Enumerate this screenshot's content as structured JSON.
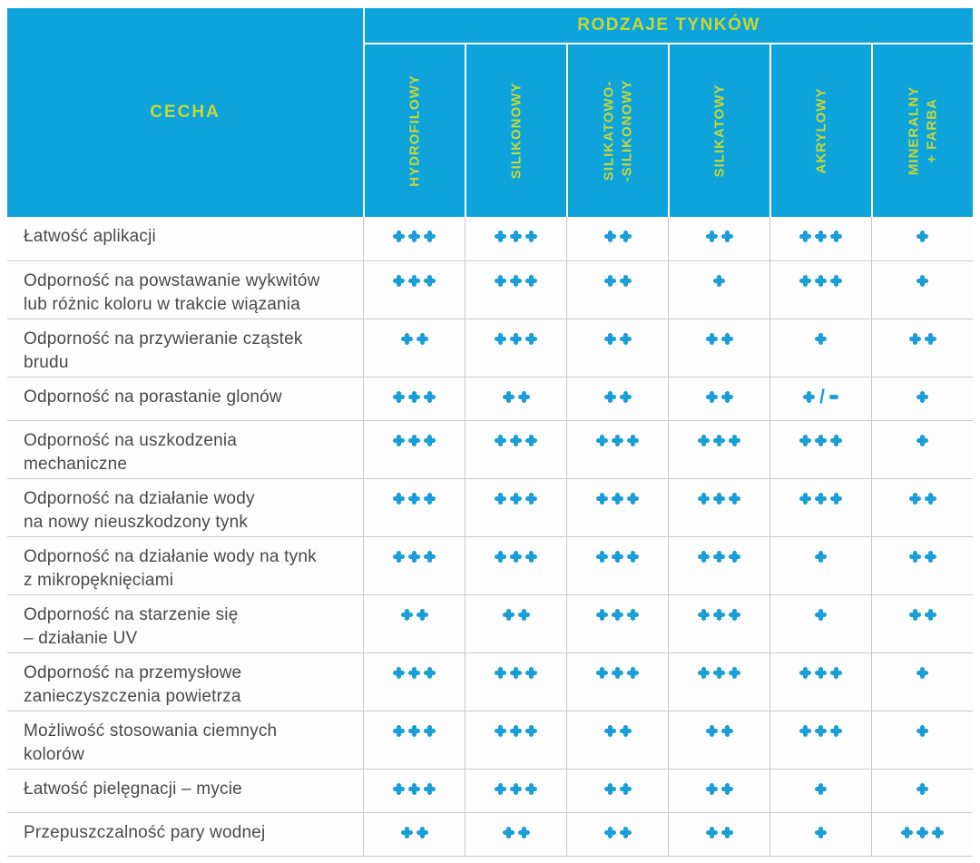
{
  "table": {
    "corner_header": "CECHA",
    "group_header": "RODZAJE TYNKÓW",
    "columns": [
      "HYDROFILOWY",
      "SILIKONOWY",
      "SILIKATOWO-\n-SILIKONOWY",
      "SILIKATOWY",
      "AKRYLOWY",
      "MINERALNY\n+ FARBA"
    ],
    "rows": [
      {
        "feature": "Łatwość aplikacji",
        "ratings": [
          "+++",
          "+++",
          "++",
          "++",
          "+++",
          "+"
        ]
      },
      {
        "feature": "Odporność na powstawanie wykwitów\nlub różnic koloru w trakcie wiązania",
        "ratings": [
          "+++",
          "+++",
          "++",
          "+",
          "+++",
          "+"
        ]
      },
      {
        "feature": "Odporność na przywieranie cząstek\nbrudu",
        "ratings": [
          "++",
          "+++",
          "++",
          "++",
          "+",
          "++"
        ]
      },
      {
        "feature": "Odporność na porastanie glonów",
        "ratings": [
          "+++",
          "++",
          "++",
          "++",
          "+/-",
          "+"
        ]
      },
      {
        "feature": "Odporność na uszkodzenia\nmechaniczne",
        "ratings": [
          "+++",
          "+++",
          "+++",
          "+++",
          "+++",
          "+"
        ]
      },
      {
        "feature": "Odporność na działanie wody\nna nowy nieuszkodzony tynk",
        "ratings": [
          "+++",
          "+++",
          "+++",
          "+++",
          "+++",
          "++"
        ]
      },
      {
        "feature": "Odporność na działanie wody na tynk\nz mikropęknięciami",
        "ratings": [
          "+++",
          "+++",
          "+++",
          "+++",
          "+",
          "++"
        ]
      },
      {
        "feature": "Odporność na starzenie się\n– działanie UV",
        "ratings": [
          "++",
          "++",
          "+++",
          "+++",
          "+",
          "++"
        ]
      },
      {
        "feature": "Odporność na przemysłowe\nzanieczyszczenia powietrza",
        "ratings": [
          "+++",
          "+++",
          "+++",
          "+++",
          "+++",
          "+"
        ]
      },
      {
        "feature": "Możliwość stosowania ciemnych\nkolorów",
        "ratings": [
          "+++",
          "+++",
          "++",
          "++",
          "+++",
          "+"
        ]
      },
      {
        "feature": "Łatwość pielęgnacji – mycie",
        "ratings": [
          "+++",
          "+++",
          "++",
          "++",
          "+",
          "+"
        ]
      },
      {
        "feature": "Przepuszczalność pary wodnej",
        "ratings": [
          "++",
          "++",
          "++",
          "++",
          "+",
          "+++"
        ]
      }
    ],
    "colors": {
      "header_bg": "#0fa3dc",
      "header_text": "#c6d831",
      "rating_icon": "#1a9ed8",
      "feature_text": "#4a4a4a",
      "grid_line": "#c9c9c9"
    }
  }
}
